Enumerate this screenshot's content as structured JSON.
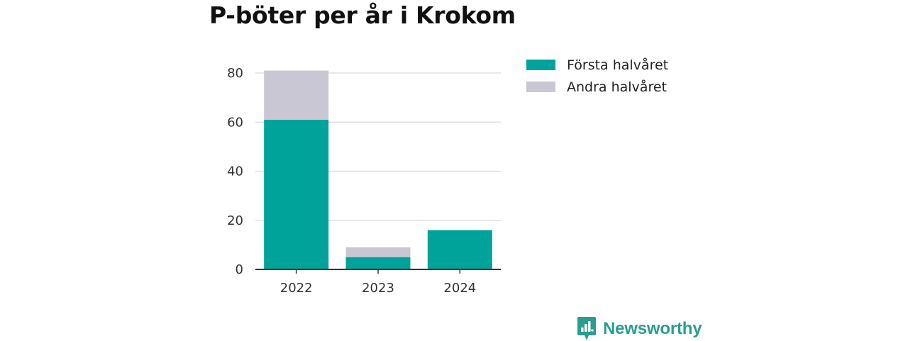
{
  "colors": {
    "first_half": "#00a39a",
    "second_half": "#c8c7d3",
    "grid": "#d9d9d9",
    "axis": "#333333",
    "brand": "#2a9d8f"
  },
  "brand": {
    "name": "Newsworthy",
    "icon": "newsworthy-logo-icon"
  },
  "chart_data": {
    "type": "bar",
    "stacked": true,
    "title": "P-böter per år i Krokom",
    "xlabel": "",
    "ylabel": "",
    "categories": [
      "2022",
      "2023",
      "2024"
    ],
    "series": [
      {
        "name": "Första halvåret",
        "values": [
          61,
          5,
          16
        ],
        "color": "#00a39a"
      },
      {
        "name": "Andra halvåret",
        "values": [
          20,
          4,
          0
        ],
        "color": "#c8c7d3"
      }
    ],
    "ylim": [
      0,
      80
    ],
    "yticks": [
      0,
      20,
      40,
      60,
      80
    ],
    "grid": true,
    "legend_position": "right"
  }
}
